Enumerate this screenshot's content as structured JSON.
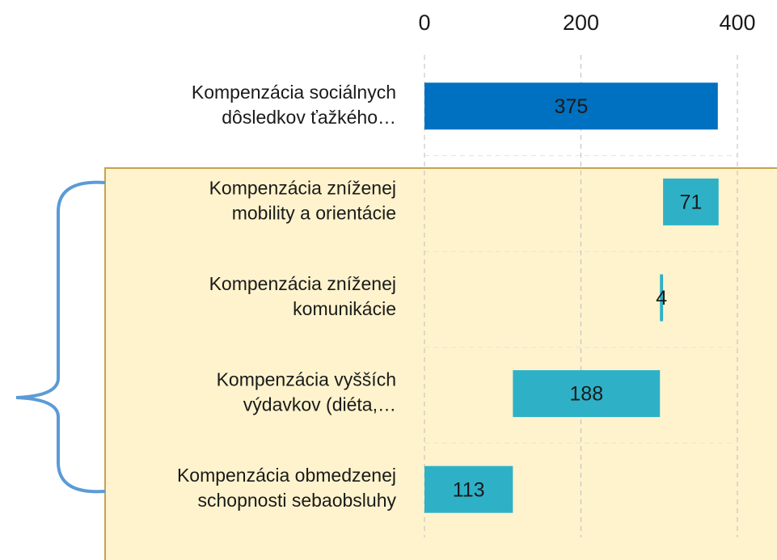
{
  "chart_data": {
    "type": "waterfall",
    "categories": [
      "Kompenzácia sociálnych\ndôsledkov ťažkého…",
      "Kompenzácia zníženej\nmobility a orientácie",
      "Kompenzácia zníženej\nkomunikácie",
      "Kompenzácia vyšších\nvýdavkov (diéta,…",
      "Kompenzácia obmedzenej\nschopnosti sebaobsluhy"
    ],
    "values": [
      375,
      71,
      4,
      188,
      113
    ],
    "colors": [
      "#0070c0",
      "#2eb1c7",
      "#2eb1c7",
      "#2eb1c7",
      "#2eb1c7"
    ],
    "xlim": [
      0,
      400
    ],
    "xticks": [
      0,
      200,
      400
    ],
    "grid": true
  }
}
